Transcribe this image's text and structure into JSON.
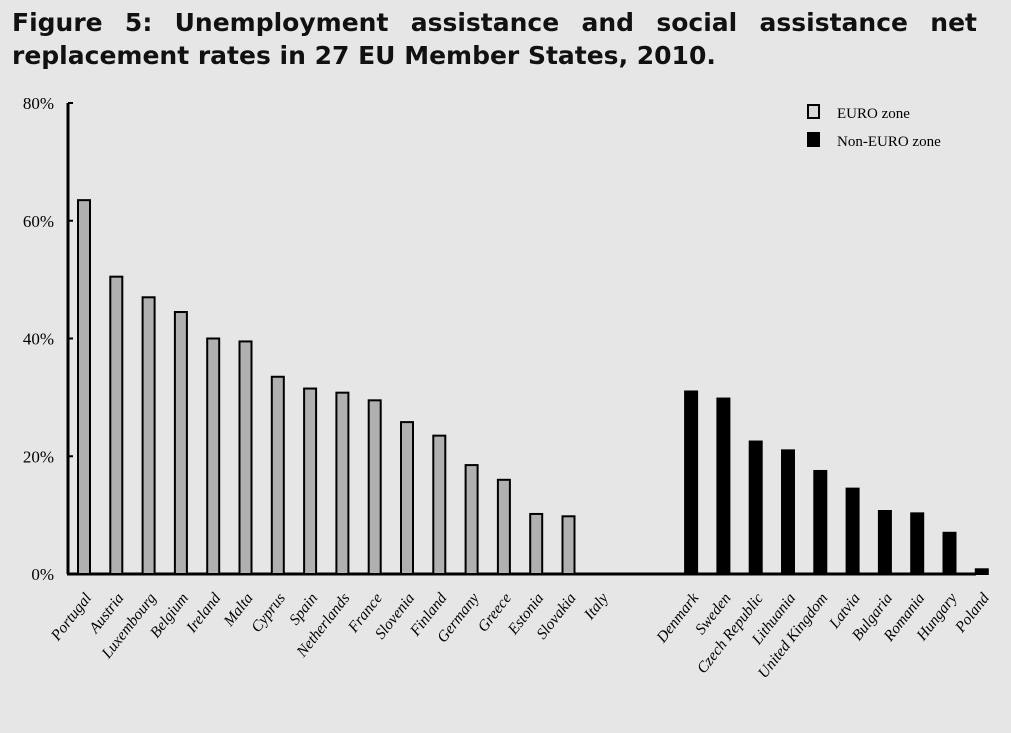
{
  "title": "Figure 5: Unemployment assistance and social assistance net replacement rates in 27 EU Member States, 2010.",
  "colors": {
    "background": "#e6e6e6",
    "euro": "#b0b0b0",
    "non_euro": "#000000",
    "outline": "#000000"
  },
  "chart_data": {
    "type": "bar",
    "title": "",
    "xlabel": "",
    "ylabel": "",
    "ylim": [
      0,
      80
    ],
    "y_ticks": [
      "0%",
      "20%",
      "40%",
      "60%",
      "80%"
    ],
    "y_tick_values": [
      0,
      20,
      40,
      60,
      80
    ],
    "grid": false,
    "legend_position": "top-right",
    "categories": [
      "Portugal",
      "Austria",
      "Luxembourg",
      "Belgium",
      "Ireland",
      "Malta",
      "Cyprus",
      "Spain",
      "Netherlands",
      "France",
      "Slovenia",
      "Finland",
      "Germany",
      "Greece",
      "Estonia",
      "Slovakia",
      "Italy",
      "Denmark",
      "Sweden",
      "Czech Republic",
      "Lithuania",
      "United Kingdom",
      "Latvia",
      "Bulgaria",
      "Romania",
      "Hungary",
      "Poland"
    ],
    "series": [
      {
        "name": "EURO zone",
        "color": "#b0b0b0",
        "values": [
          63.5,
          50.5,
          47,
          44.5,
          40,
          39.5,
          33.5,
          31.5,
          30.8,
          29.5,
          25.8,
          23.5,
          18.5,
          16,
          10.2,
          9.8,
          0,
          null,
          null,
          null,
          null,
          null,
          null,
          null,
          null,
          null,
          null
        ]
      },
      {
        "name": "Non-EURO zone",
        "color": "#000000",
        "values": [
          null,
          null,
          null,
          null,
          null,
          null,
          null,
          null,
          null,
          null,
          null,
          null,
          null,
          null,
          null,
          null,
          null,
          31,
          29.8,
          22.5,
          21,
          17.5,
          14.5,
          10.7,
          10.3,
          7,
          0.8
        ]
      }
    ]
  }
}
